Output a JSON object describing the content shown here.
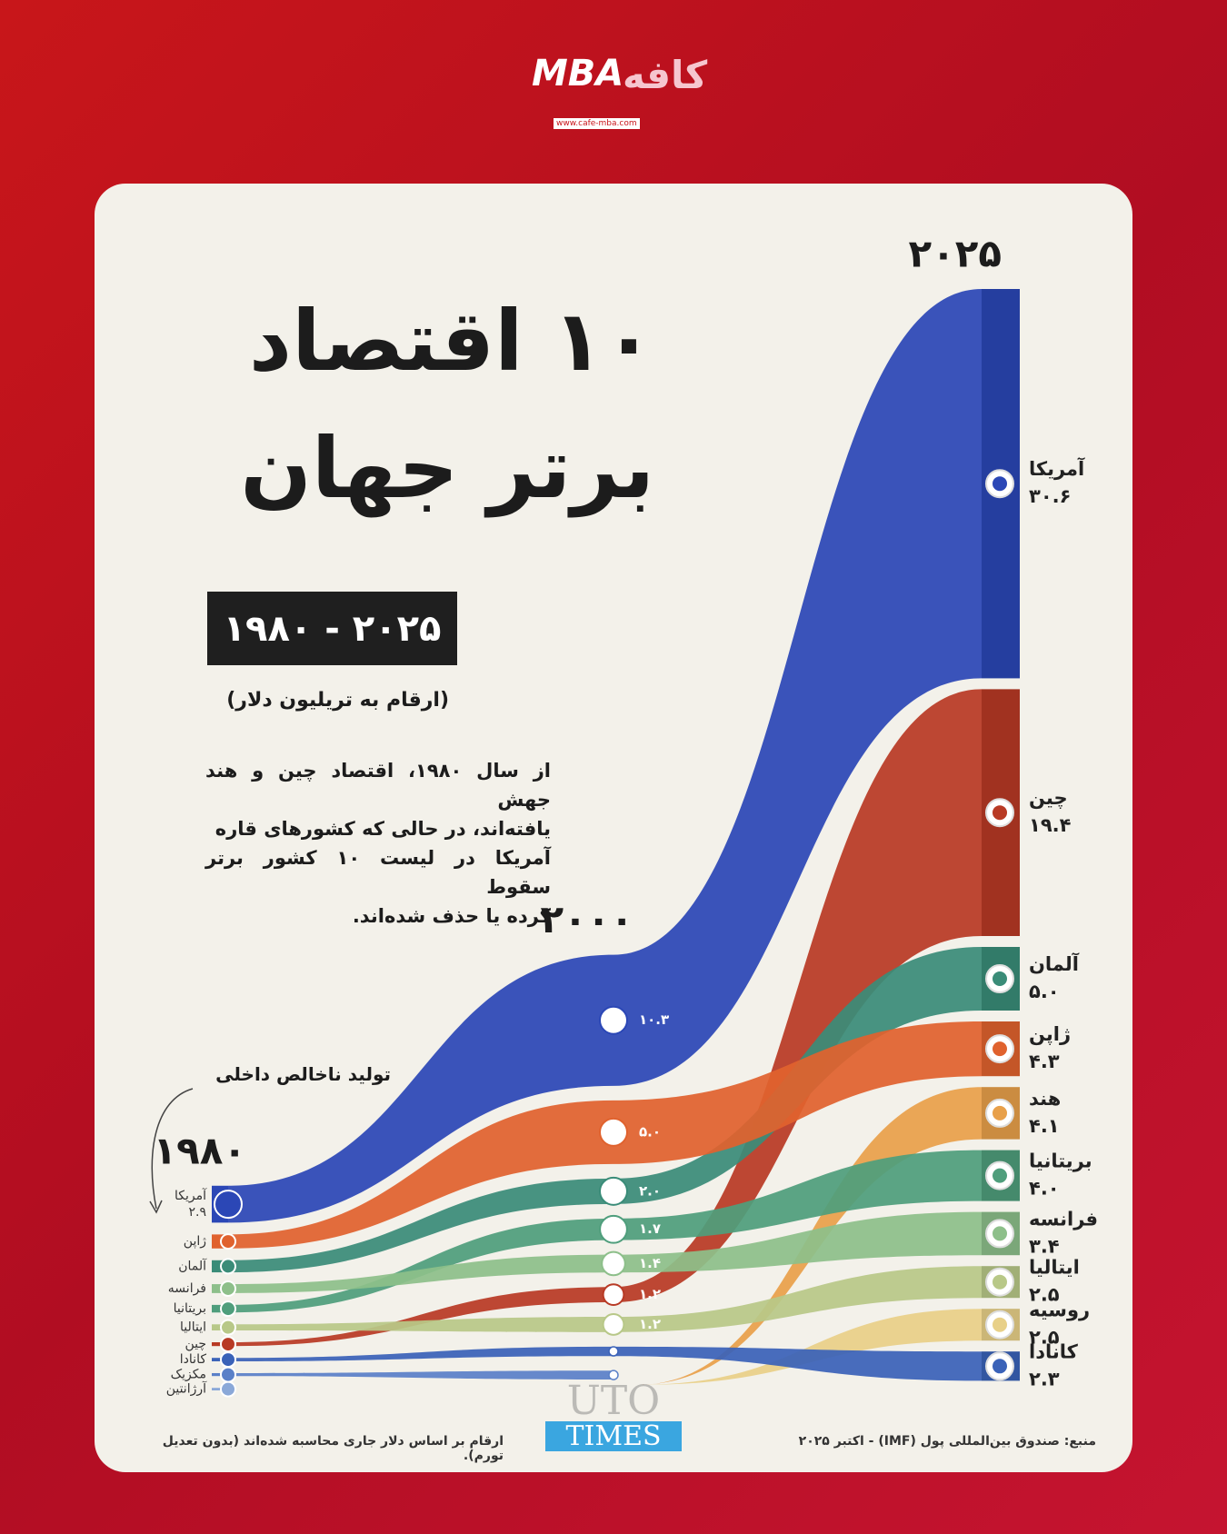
{
  "logo": {
    "latin": "MBA",
    "persian": "کافه",
    "url": "www.cafe-mba.com"
  },
  "header": {
    "title_lines": [
      "۱۰ اقتصاد",
      "برتر جهان"
    ],
    "period": "۱۹۸۰ - ۲۰۲۵",
    "unit": "(ارقام به تریلیون دلار)",
    "description_lines": [
      "از سال ۱۹۸۰، اقتصاد چین و هند جهش",
      "یافته‌اند، در حالی که کشورهای قاره",
      "آمریکا در لیست ۱۰ کشور برتر سقوط",
      "کرده یا حذف شده‌اند."
    ],
    "annotation": "تولید ناخالص داخلی"
  },
  "chart_data": {
    "type": "flow",
    "stages": [
      {
        "label": "۱۹۸۰",
        "names": [
          "آمریکا",
          "ژاپن",
          "آلمان",
          "فرانسه",
          "بریتانیا",
          "ایتالیا",
          "چین",
          "کانادا",
          "مکزیک",
          "آرژانتین"
        ],
        "values": [
          2.9,
          1.1,
          0.95,
          0.7,
          0.6,
          0.48,
          0.3,
          0.27,
          0.23,
          0.2
        ],
        "value_labels": [
          "۲.۹",
          null,
          null,
          null,
          null,
          null,
          null,
          null,
          null,
          null
        ],
        "colors": [
          "#2b47b6",
          "#e0622e",
          "#3a8c78",
          "#8dbf8a",
          "#4f9e7c",
          "#b8c888",
          "#b83a25",
          "#3a62b8",
          "#5a80c8",
          "#8aa8d8"
        ]
      },
      {
        "label": "۲۰۰۰",
        "names": [
          "آمریکا",
          "ژاپن",
          "آلمان",
          "بریتانیا",
          "فرانسه",
          "چین",
          "ایتالیا",
          "کانادا",
          "مکزیک"
        ],
        "values": [
          10.3,
          5.0,
          2.0,
          1.7,
          1.4,
          1.2,
          1.2,
          0.74,
          0.7
        ],
        "value_labels": [
          "۱۰.۳",
          "۵.۰",
          "۲.۰",
          "۱.۷",
          "۱.۴",
          "۱.۲",
          "۱.۲",
          null,
          null
        ],
        "colors": [
          "#2b47b6",
          "#e0622e",
          "#3a8c78",
          "#4f9e7c",
          "#8dbf8a",
          "#b83a25",
          "#b8c888",
          "#3a62b8",
          "#5a80c8"
        ]
      },
      {
        "label": "۲۰۲۵",
        "names": [
          "آمریکا",
          "چین",
          "آلمان",
          "ژاپن",
          "هند",
          "بریتانیا",
          "فرانسه",
          "ایتالیا",
          "روسیه",
          "کانادا"
        ],
        "values": [
          30.6,
          19.4,
          5.0,
          4.3,
          4.1,
          4.0,
          3.4,
          2.5,
          2.5,
          2.3
        ],
        "value_labels": [
          "۳۰.۶",
          "۱۹.۴",
          "۵.۰",
          "۴.۳",
          "۴.۱",
          "۴.۰",
          "۳.۴",
          "۲.۵",
          "۲.۵",
          "۲.۳"
        ],
        "colors": [
          "#2b47b6",
          "#b83a25",
          "#3a8c78",
          "#e0622e",
          "#e8a04a",
          "#4f9e7c",
          "#8dbf8a",
          "#b8c888",
          "#e8d088",
          "#3a62b8"
        ]
      }
    ]
  },
  "footer": {
    "note": "ارقام بر اساس دلار جاری محاسبه شده‌اند (بدون تعدیل تورم).",
    "source": "منبع: صندوق بین‌المللی پول (IMF) - اکتبر ۲۰۲۵",
    "watermark": [
      "UTO",
      "TIMES"
    ]
  }
}
